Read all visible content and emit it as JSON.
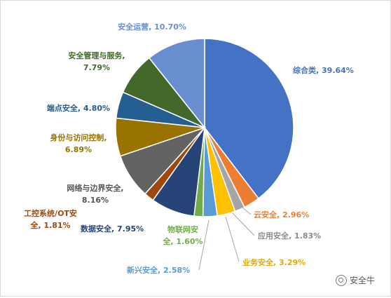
{
  "chart_data": {
    "type": "pie",
    "start_angle_deg": 90,
    "direction": "clockwise",
    "slices": [
      {
        "label": "综合类",
        "value": 39.64,
        "display": "综合类, 39.64%",
        "color": "#4472C4",
        "label_color": "#4472C4"
      },
      {
        "label": "云安全",
        "value": 2.96,
        "display": "云安全, 2.96%",
        "color": "#ED7D31",
        "label_color": "#ED7D31"
      },
      {
        "label": "应用安全",
        "value": 1.83,
        "display": "应用安全, 1.83%",
        "color": "#A5A5A5",
        "label_color": "#8C8C8C"
      },
      {
        "label": "业务安全",
        "value": 3.29,
        "display": "业务安全, 3.29%",
        "color": "#FFC000",
        "label_color": "#E6A800"
      },
      {
        "label": "新兴安全",
        "value": 2.58,
        "display": "新兴安全, 2.58%",
        "color": "#5B9BD5",
        "label_color": "#5B9BD5"
      },
      {
        "label": "物联网安全",
        "value": 1.6,
        "display": "物联网安全, 1.60%",
        "color": "#70AD47",
        "label_color": "#70AD47"
      },
      {
        "label": "数据安全",
        "value": 7.95,
        "display": "数据安全, 7.95%",
        "color": "#264478",
        "label_color": "#264478"
      },
      {
        "label": "工控系统/OT安全",
        "value": 1.81,
        "display": "工控系统/OT安全, 1.81%",
        "color": "#9E480E",
        "label_color": "#9E480E"
      },
      {
        "label": "网络与边界安全",
        "value": 8.16,
        "display": "网络与边界安全, 8.16%",
        "color": "#636363",
        "label_color": "#555555"
      },
      {
        "label": "身份与访问控制",
        "value": 6.89,
        "display": "身份与访问控制, 6.89%",
        "color": "#997300",
        "label_color": "#997300"
      },
      {
        "label": "端点安全",
        "value": 4.8,
        "display": "端点安全, 4.80%",
        "color": "#255E91",
        "label_color": "#255E91"
      },
      {
        "label": "安全管理与服务",
        "value": 7.79,
        "display": "安全管理与服务, 7.79%",
        "color": "#43682B",
        "label_color": "#43682B"
      },
      {
        "label": "安全运营",
        "value": 10.7,
        "display": "安全运营, 10.70%",
        "color": "#698ED0",
        "label_color": "#698ED0"
      }
    ]
  },
  "watermark": {
    "text": "安全牛",
    "icon": "wechat-bubble-icon"
  }
}
